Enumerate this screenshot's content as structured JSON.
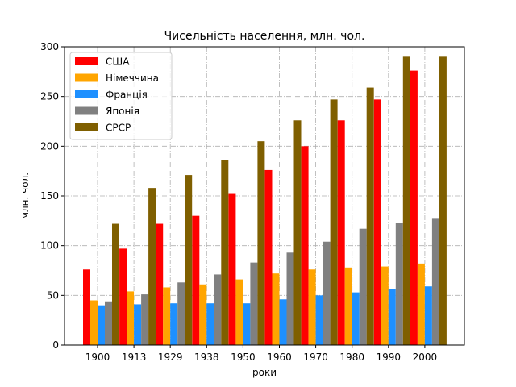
{
  "chart_data": {
    "type": "bar",
    "title": "Чисельність населення, млн. чол.",
    "xlabel": "роки",
    "ylabel": "млн. чол.",
    "ylim": [
      0,
      300
    ],
    "yticks": [
      0,
      50,
      100,
      150,
      200,
      250,
      300
    ],
    "grid": true,
    "legend_position": "top-left",
    "categories": [
      "1900",
      "1913",
      "1929",
      "1938",
      "1950",
      "1960",
      "1970",
      "1980",
      "1990",
      "2000"
    ],
    "series": [
      {
        "name": "США",
        "color": "#ff0000",
        "values": [
          76,
          97,
          122,
          130,
          152,
          176,
          200,
          226,
          247,
          276
        ]
      },
      {
        "name": "Німеччина",
        "color": "#ffa500",
        "values": [
          45,
          54,
          58,
          61,
          66,
          72,
          76,
          78,
          79,
          82
        ]
      },
      {
        "name": "Франція",
        "color": "#1e90ff",
        "values": [
          40,
          41,
          42,
          42,
          42,
          46,
          50,
          53,
          56,
          59
        ]
      },
      {
        "name": "Японія",
        "color": "#808080",
        "values": [
          44,
          51,
          63,
          71,
          83,
          93,
          104,
          117,
          123,
          127
        ]
      },
      {
        "name": "СРСР",
        "color": "#7f5f00",
        "values": [
          122,
          158,
          171,
          186,
          205,
          226,
          247,
          259,
          290,
          290
        ]
      }
    ]
  }
}
